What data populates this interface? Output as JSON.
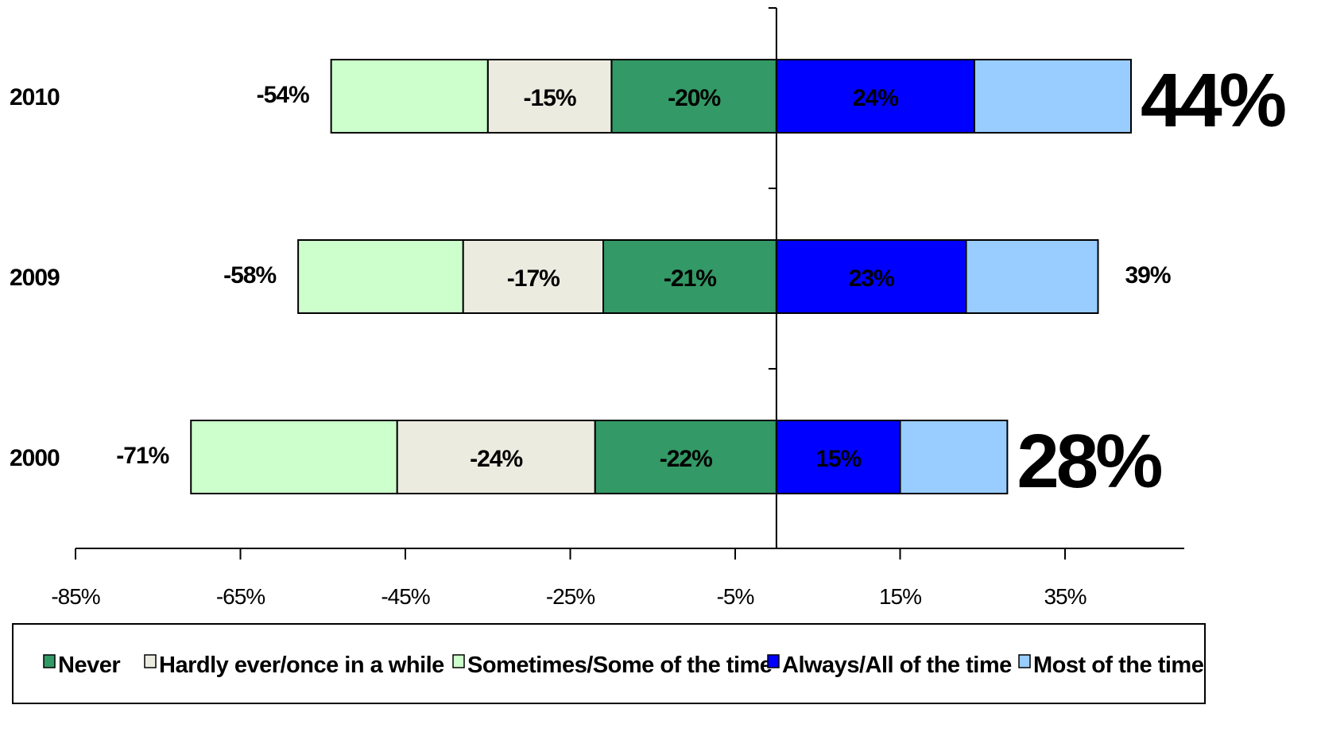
{
  "chart_data": {
    "type": "bar",
    "orientation": "horizontal",
    "stacked": "diverging",
    "categories": [
      "2010",
      "2009",
      "2000"
    ],
    "xlim": [
      -85,
      45
    ],
    "x_ticks": [
      "-85%",
      "-65%",
      "-45%",
      "-25%",
      "-5%",
      "15%",
      "35%"
    ],
    "grid": false,
    "legend_position": "bottom",
    "series": [
      {
        "name": "Never",
        "color": "#339966",
        "side": "negative",
        "values": [
          -20,
          -21,
          -22
        ],
        "labels": [
          "-20%",
          "-21%",
          "-22%"
        ]
      },
      {
        "name": "Hardly ever/once in a while",
        "color": "#ECEBE0",
        "side": "negative",
        "values": [
          -15,
          -17,
          -24
        ],
        "labels": [
          "-15%",
          "-17%",
          "-24%"
        ]
      },
      {
        "name": "Sometimes/Some of the time",
        "color": "#CCFFCC",
        "side": "negative",
        "values": [
          -19,
          -20,
          -25
        ],
        "labels": [
          "",
          "",
          ""
        ]
      },
      {
        "name": "Always/All of the time",
        "color": "#0000FF",
        "side": "positive",
        "values": [
          24,
          23,
          15
        ],
        "labels": [
          "24%",
          "23%",
          "15%"
        ]
      },
      {
        "name": "Most of the time",
        "color": "#99CCFF",
        "side": "positive",
        "values": [
          19,
          16,
          13
        ],
        "labels": [
          "",
          "",
          ""
        ]
      }
    ],
    "negative_totals": [
      "-54%",
      "-58%",
      "-71%"
    ],
    "positive_totals": [
      "44%",
      "39%",
      "28%"
    ],
    "positive_totals_emphasis": [
      true,
      false,
      true
    ],
    "legend_order": [
      "Never",
      "Hardly ever/once in a while",
      "Sometimes/Some of the time",
      "Always/All of the time",
      "Most of the time"
    ]
  }
}
